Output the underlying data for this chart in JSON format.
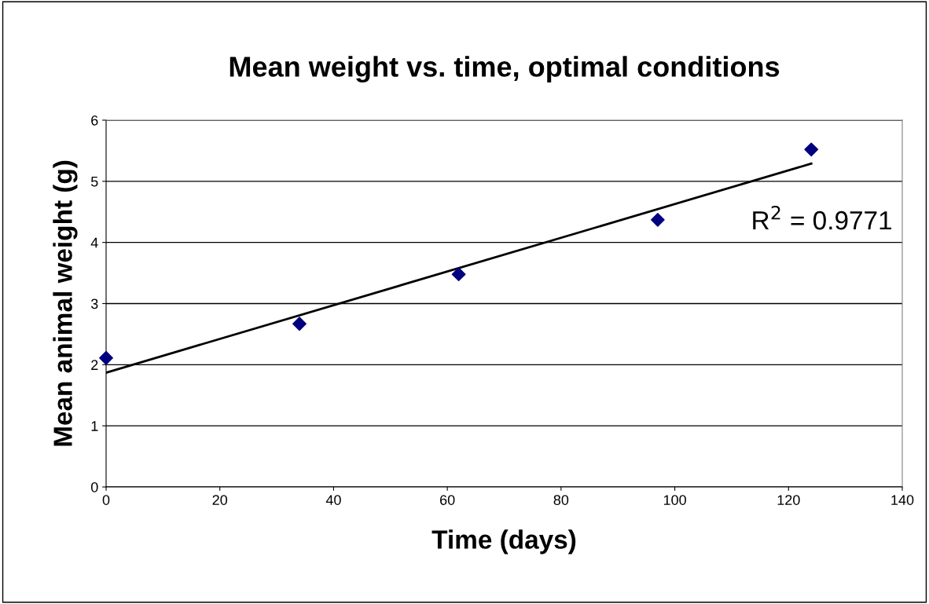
{
  "chart_data": {
    "type": "scatter",
    "title": "Mean weight vs. time, optimal conditions",
    "xlabel": "Time (days)",
    "ylabel": "Mean animal weight (g)",
    "x": [
      0,
      34,
      62,
      97,
      124
    ],
    "series": [
      {
        "color": "#000080",
        "marker": "diamond",
        "values": [
          2.11,
          2.67,
          3.48,
          4.37,
          5.52
        ]
      },
      {
        "type": "line",
        "color": "#000000",
        "marker": "none",
        "line_style": "solid",
        "x": [
          0,
          124
        ],
        "values": [
          1.87,
          5.29
        ]
      }
    ],
    "annotations": [
      "R$^{2}$ = 0.9771"
    ],
    "xlim": [
      0,
      140
    ],
    "xticks": [
      0,
      20,
      40,
      60,
      80,
      100,
      120,
      140
    ],
    "ylim": [
      0,
      6
    ],
    "yticks": [
      0,
      1,
      2,
      3,
      4,
      5,
      6
    ],
    "grid": "y",
    "legend": false
  }
}
